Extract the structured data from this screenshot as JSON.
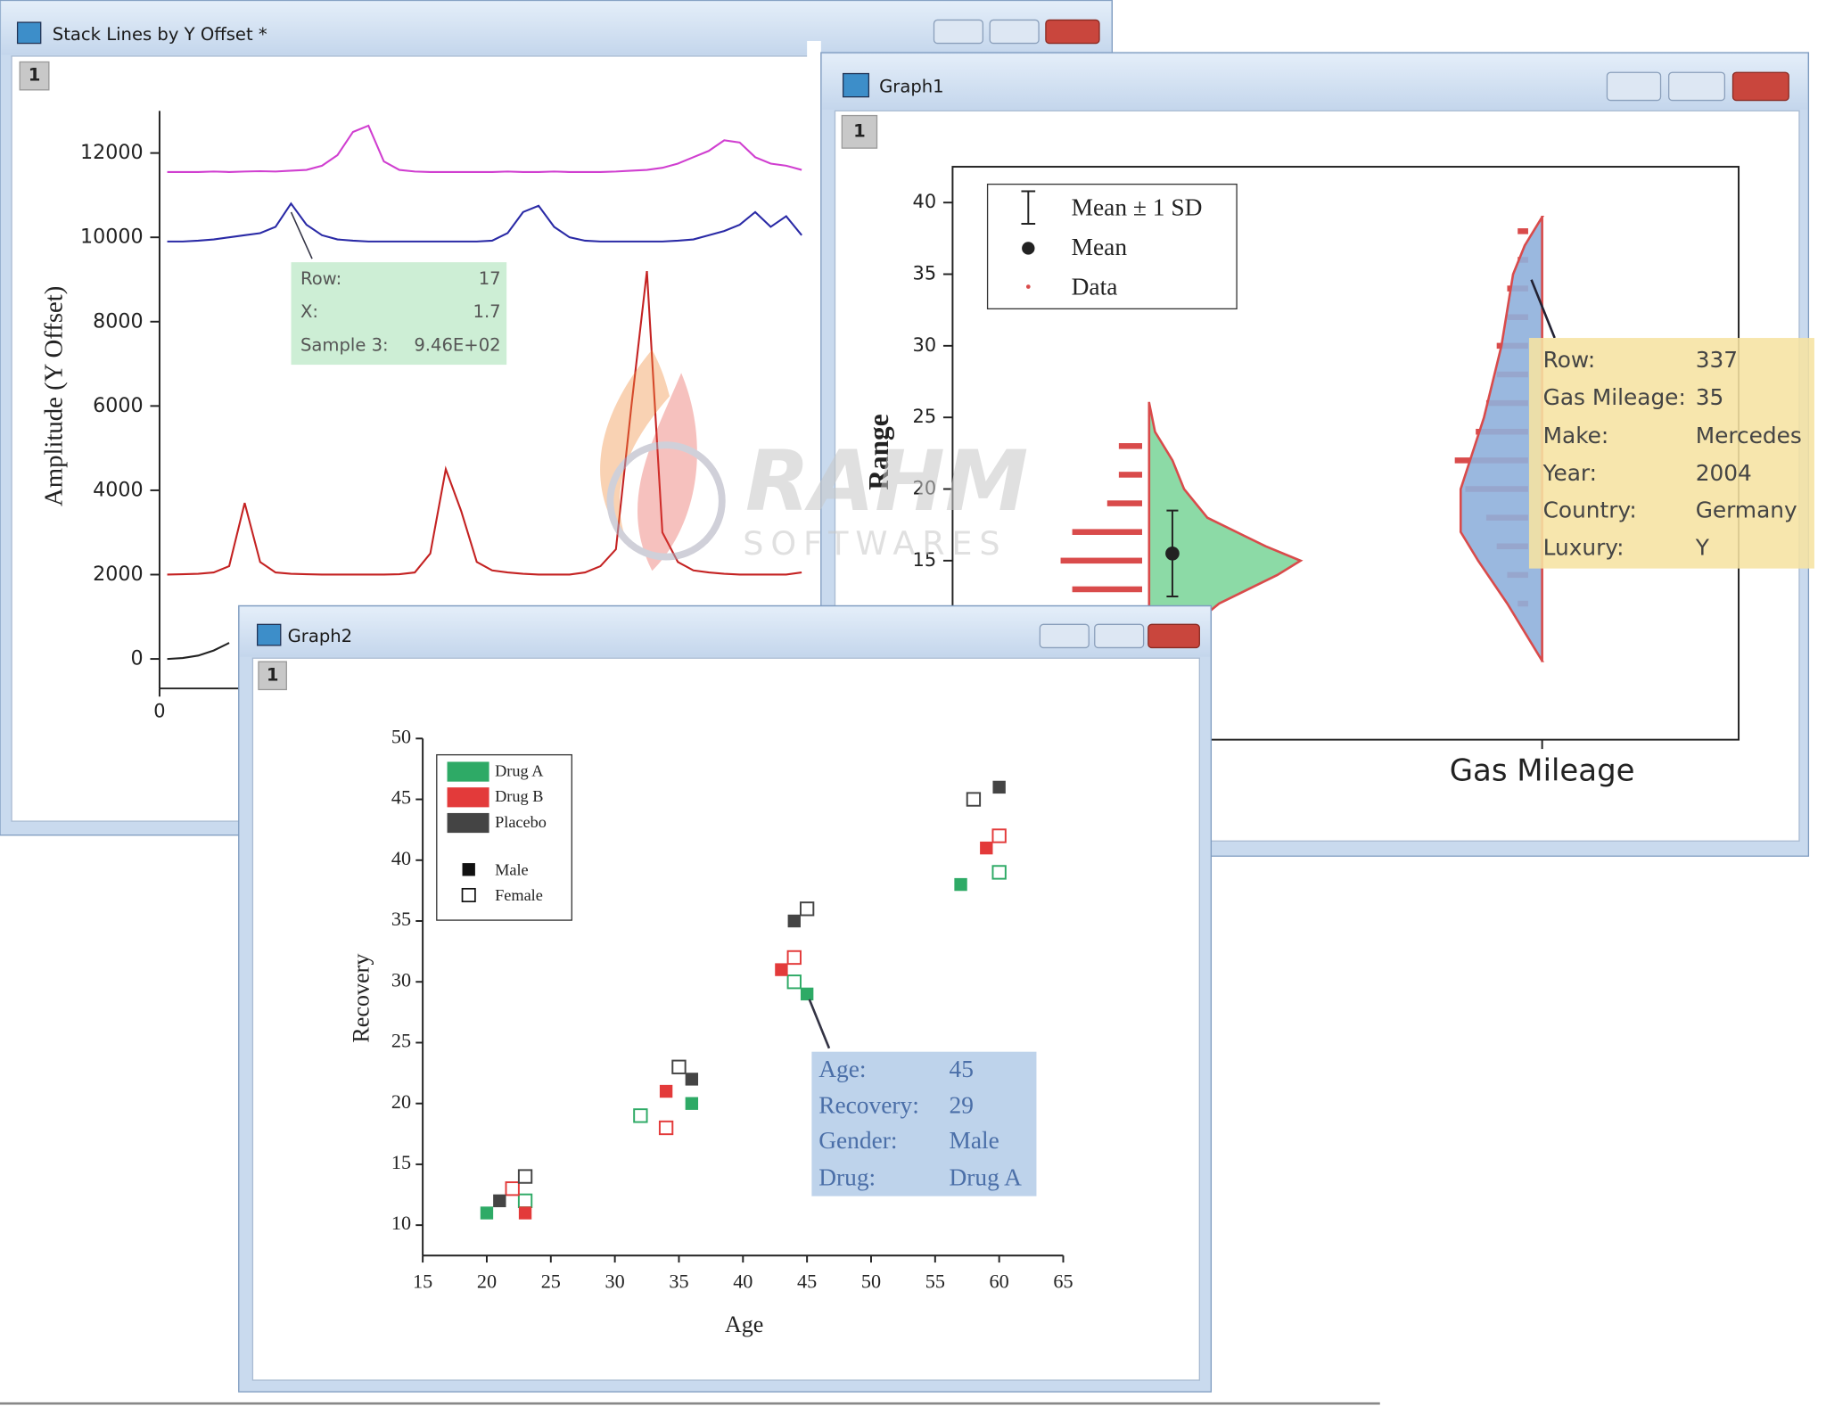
{
  "windows": [
    {
      "title": "Stack Lines by Y Offset *",
      "tab": "1"
    },
    {
      "title": "Graph1",
      "tab": "1"
    },
    {
      "title": "Graph2",
      "tab": "1"
    }
  ],
  "watermark": [
    "RAHM",
    "SOFTWARES"
  ],
  "chart_data": [
    {
      "type": "line",
      "y_label": "Amplitude (Y Offset)",
      "x": [
        0.1,
        0.3,
        0.5,
        0.7,
        0.9,
        1.1,
        1.3,
        1.5,
        1.7,
        1.9,
        2.1,
        2.3,
        2.5,
        2.7,
        2.9,
        3.1,
        3.3,
        3.5,
        3.7,
        3.9,
        4.1,
        4.3,
        4.5,
        4.7,
        4.9,
        5.1,
        5.3,
        5.5,
        5.7,
        5.9,
        6.1,
        6.3,
        6.5,
        6.7,
        6.9,
        7.1,
        7.3,
        7.5,
        7.7,
        7.9,
        8.1,
        8.3
      ],
      "xlim": [
        0,
        8.4
      ],
      "xticks": [
        0
      ],
      "ylim": [
        -700,
        13000
      ],
      "yticks": [
        0,
        2000,
        4000,
        6000,
        8000,
        10000,
        12000
      ],
      "series": [
        {
          "color": "#d03fd0",
          "values": [
            11550,
            11550,
            11550,
            11560,
            11550,
            11560,
            11570,
            11560,
            11580,
            11600,
            11700,
            11950,
            12500,
            12650,
            11800,
            11600,
            11560,
            11550,
            11550,
            11550,
            11550,
            11550,
            11560,
            11550,
            11550,
            11560,
            11550,
            11550,
            11550,
            11560,
            11580,
            11600,
            11650,
            11750,
            11900,
            12050,
            12300,
            12250,
            11900,
            11750,
            11700,
            11600
          ]
        },
        {
          "color": "#2a2aa6",
          "values": [
            9900,
            9900,
            9920,
            9950,
            10000,
            10050,
            10100,
            10250,
            10800,
            10300,
            10050,
            9950,
            9920,
            9900,
            9900,
            9900,
            9900,
            9900,
            9900,
            9900,
            9900,
            9920,
            10100,
            10600,
            10750,
            10250,
            10000,
            9920,
            9900,
            9900,
            9900,
            9900,
            9900,
            9920,
            9950,
            10050,
            10150,
            10300,
            10600,
            10250,
            10500,
            10050
          ]
        },
        {
          "color": "#c42222",
          "values": [
            2000,
            2010,
            2020,
            2050,
            2200,
            3700,
            2300,
            2050,
            2020,
            2010,
            2000,
            2000,
            2000,
            2000,
            2000,
            2010,
            2050,
            2500,
            4500,
            3500,
            2300,
            2100,
            2050,
            2020,
            2000,
            2000,
            2000,
            2050,
            2200,
            2600,
            6000,
            9200,
            3000,
            2300,
            2100,
            2050,
            2020,
            2000,
            2000,
            2000,
            2000,
            2050
          ]
        },
        {
          "color": "#222222",
          "values": [
            0,
            20,
            80,
            200,
            380,
            null,
            null,
            null,
            null,
            null,
            null,
            null,
            null,
            null,
            null,
            null,
            null,
            null,
            null,
            null,
            null,
            null,
            null,
            null,
            null,
            null,
            null,
            null,
            null,
            null,
            null,
            null,
            null,
            null,
            null,
            null,
            null,
            null,
            null,
            null,
            null,
            null
          ]
        }
      ],
      "tooltip": [
        [
          "Row:",
          "17"
        ],
        [
          "X:",
          "1.7"
        ],
        [
          "Sample 3:",
          "9.46E+02"
        ]
      ]
    },
    {
      "type": "violin",
      "y_label": "Range",
      "categories": [
        null,
        "Gas Mileage"
      ],
      "ylim": [
        2.5,
        42.5
      ],
      "yticks": [
        15,
        20,
        25,
        30,
        35,
        40
      ],
      "legend": [
        "Mean ± 1 SD",
        "Mean",
        "Data"
      ],
      "data_color": "#d94b4b",
      "groups": [
        {
          "color": "#7fd69c",
          "side": "right",
          "y": [
            13,
            15,
            17,
            19,
            21,
            23
          ],
          "counts": [
            6,
            7,
            6,
            3,
            2,
            2
          ],
          "kde_y": [
            26,
            24,
            22,
            20,
            18,
            16,
            15,
            14,
            12,
            10
          ],
          "kde": [
            0,
            0.5,
            2,
            3,
            5,
            10,
            13,
            11,
            6,
            3
          ],
          "mean": 15.5,
          "sd": 3
        },
        {
          "color": "#8fb0dc",
          "side": "left",
          "y": [
            38,
            36,
            34,
            32,
            30,
            28,
            26,
            24,
            22,
            20,
            18,
            16,
            14,
            12
          ],
          "counts": [
            1,
            1,
            2,
            2,
            3,
            3,
            4,
            5,
            7,
            6,
            4,
            3,
            2,
            1
          ],
          "kde_y": [
            39,
            37,
            35,
            30,
            25,
            20,
            17,
            15,
            12,
            10,
            8
          ],
          "kde": [
            0,
            1.5,
            2.5,
            3.5,
            5,
            7,
            7,
            5.5,
            3,
            1.5,
            0
          ]
        }
      ],
      "tooltip": [
        [
          "Row:",
          "337"
        ],
        [
          "Gas Mileage:",
          "35"
        ],
        [
          "Make:",
          "Mercedes"
        ],
        [
          "Year:",
          "2004"
        ],
        [
          "Country:",
          "Germany"
        ],
        [
          "Luxury:",
          "Y"
        ]
      ]
    },
    {
      "type": "scatter",
      "x_label": "Age",
      "y_label": "Recovery",
      "xlim": [
        15,
        65
      ],
      "xticks": [
        15,
        20,
        25,
        30,
        35,
        40,
        45,
        50,
        55,
        60,
        65
      ],
      "ylim": [
        7.5,
        50
      ],
      "yticks": [
        10,
        15,
        20,
        25,
        30,
        35,
        40,
        45,
        50
      ],
      "legend": {
        "drugs": [
          {
            "label": "Drug A",
            "color": "#2eaa66"
          },
          {
            "label": "Drug B",
            "color": "#e33a3a"
          },
          {
            "label": "Placebo",
            "color": "#444444"
          }
        ],
        "genders": [
          {
            "label": "Male",
            "filled": true
          },
          {
            "label": "Female",
            "filled": false
          }
        ]
      },
      "series": [
        {
          "color": "#2eaa66",
          "filled": true,
          "x": [
            20,
            36,
            45,
            57
          ],
          "values": [
            11,
            20,
            29,
            38
          ]
        },
        {
          "color": "#2eaa66",
          "filled": false,
          "x": [
            23,
            32,
            44,
            60
          ],
          "values": [
            12,
            19,
            30,
            39
          ]
        },
        {
          "color": "#e33a3a",
          "filled": true,
          "x": [
            23,
            34,
            43,
            59
          ],
          "values": [
            11,
            21,
            31,
            41
          ]
        },
        {
          "color": "#e33a3a",
          "filled": false,
          "x": [
            22,
            34,
            44,
            60
          ],
          "values": [
            13,
            18,
            32,
            42
          ]
        },
        {
          "color": "#444444",
          "filled": true,
          "x": [
            21,
            36,
            44,
            60
          ],
          "values": [
            12,
            22,
            35,
            46
          ]
        },
        {
          "color": "#444444",
          "filled": false,
          "x": [
            23,
            35,
            45,
            58
          ],
          "values": [
            14,
            23,
            36,
            45
          ]
        }
      ],
      "tooltip": [
        [
          "Age:",
          "45"
        ],
        [
          "Recovery:",
          "29"
        ],
        [
          "Gender:",
          "Male"
        ],
        [
          "Drug:",
          "Drug A"
        ]
      ]
    }
  ]
}
